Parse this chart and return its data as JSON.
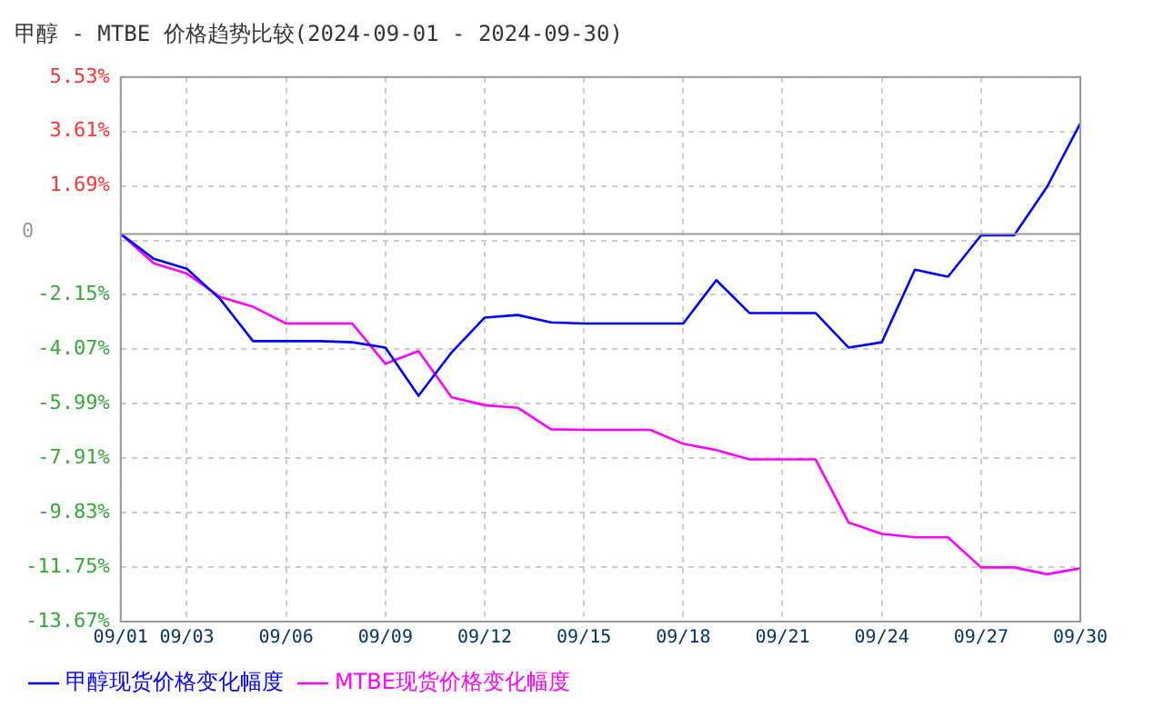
{
  "chart_data": {
    "type": "line",
    "title": "甲醇 - MTBE 价格趋势比较(2024-09-01 - 2024-09-30)",
    "x": [
      "--09-01",
      "--09-02",
      "--09-03",
      "--09-04",
      "--09-05",
      "--09-06",
      "--09-07",
      "--09-08",
      "--09-09",
      "--09-10",
      "--09-11",
      "--09-12",
      "--09-13",
      "--09-14",
      "--09-15",
      "--09-16",
      "--09-17",
      "--09-18",
      "--09-19",
      "--09-20",
      "--09-21",
      "--09-22",
      "--09-23",
      "--09-24",
      "--09-25",
      "--09-26",
      "--09-27",
      "--09-28",
      "--09-29",
      "--09-30"
    ],
    "series": [
      {
        "name": "甲醇现货价格变化幅度",
        "color": "#0000ff",
        "values": [
          0.0,
          -0.88,
          -1.23,
          -2.29,
          -3.78,
          -3.78,
          -3.78,
          -3.82,
          -4.01,
          -5.71,
          -4.18,
          -2.95,
          -2.86,
          -3.12,
          -3.16,
          -3.16,
          -3.16,
          -3.16,
          -1.63,
          -2.79,
          -2.79,
          -2.79,
          -4.01,
          -3.82,
          -1.26,
          -1.51,
          -0.05,
          -0.05,
          1.67,
          3.9
        ]
      },
      {
        "name": "MTBE现货价格变化幅度",
        "color": "#ff00ff",
        "values": [
          0.0,
          -1.04,
          -1.4,
          -2.22,
          -2.57,
          -3.16,
          -3.16,
          -3.16,
          -4.58,
          -4.13,
          -5.76,
          -6.04,
          -6.13,
          -6.89,
          -6.91,
          -6.91,
          -6.91,
          -7.4,
          -7.62,
          -7.95,
          -7.95,
          -7.95,
          -10.18,
          -10.58,
          -10.7,
          -10.7,
          -11.76,
          -11.76,
          -12.0,
          -11.79
        ]
      }
    ],
    "xlim": [
      "--09-01",
      "--09-30"
    ],
    "xticks": [
      {
        "value": "--09-01",
        "label": "09/01"
      },
      {
        "value": "--09-03",
        "label": "09/03"
      },
      {
        "value": "--09-06",
        "label": "09/06"
      },
      {
        "value": "--09-09",
        "label": "09/09"
      },
      {
        "value": "--09-12",
        "label": "09/12"
      },
      {
        "value": "--09-15",
        "label": "09/15"
      },
      {
        "value": "--09-18",
        "label": "09/18"
      },
      {
        "value": "--09-21",
        "label": "09/21"
      },
      {
        "value": "--09-24",
        "label": "09/24"
      },
      {
        "value": "--09-27",
        "label": "09/27"
      },
      {
        "value": "--09-30",
        "label": "09/30"
      }
    ],
    "ylim": [
      -13.67,
      5.53
    ],
    "yticks": [
      {
        "value": 5.53,
        "label": "5.53%"
      },
      {
        "value": 3.61,
        "label": "3.61%"
      },
      {
        "value": 1.69,
        "label": "1.69%"
      },
      {
        "value": -0.23,
        "label": null
      },
      {
        "value": -2.15,
        "label": "-2.15%"
      },
      {
        "value": -4.07,
        "label": "-4.07%"
      },
      {
        "value": -5.99,
        "label": "-5.99%"
      },
      {
        "value": -7.91,
        "label": "-7.91%"
      },
      {
        "value": -9.83,
        "label": "-9.83%"
      },
      {
        "value": -11.75,
        "label": "-11.75%"
      },
      {
        "value": -13.67,
        "label": "-13.67%"
      }
    ],
    "ref_lines": [
      {
        "axis": "y",
        "value": 0,
        "label": "0",
        "color": "#999999",
        "line_style": "solid"
      }
    ],
    "grid": true,
    "legend": "bottom left",
    "marker": "none",
    "line_style": "solid"
  }
}
